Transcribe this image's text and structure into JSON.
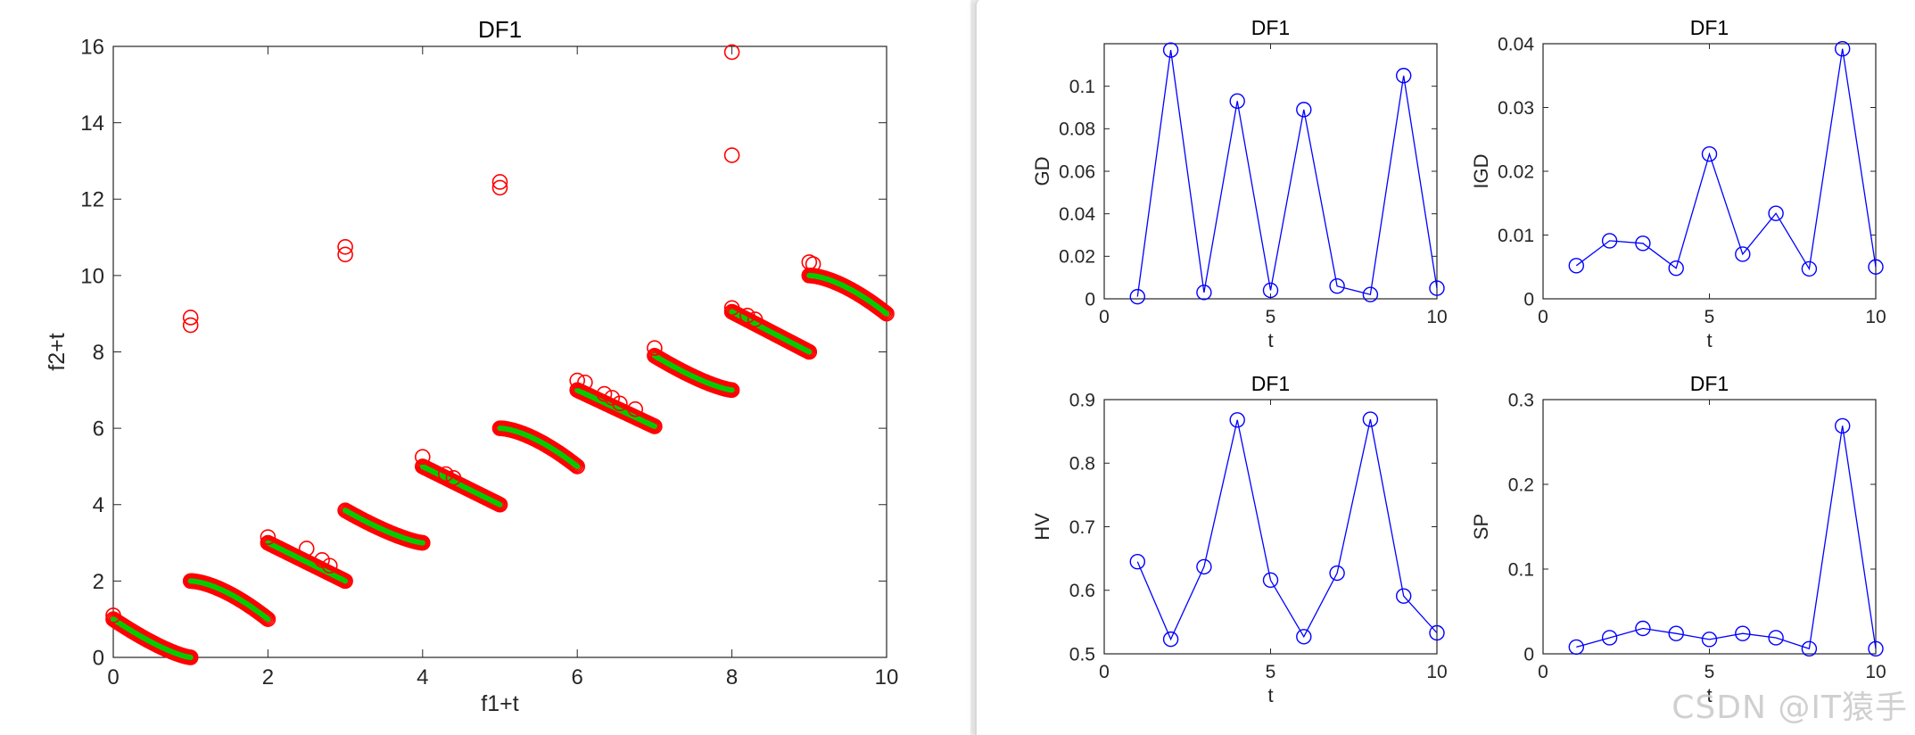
{
  "watermark": "CSDN @IT猿手",
  "colors": {
    "front": "#ff0000",
    "true_pf": "#00cc00",
    "metric": "#0000ff",
    "axis": "#262626"
  },
  "chart_data": [
    {
      "id": "main",
      "type": "scatter",
      "title": "DF1",
      "xlabel": "f1+t",
      "ylabel": "f2+t",
      "xlim": [
        0,
        10
      ],
      "ylim": [
        0,
        16
      ],
      "xticks": [
        0,
        2,
        4,
        6,
        8,
        10
      ],
      "yticks": [
        0,
        2,
        4,
        6,
        8,
        10,
        12,
        14,
        16
      ],
      "series": [],
      "segments": [
        {
          "t": 0,
          "x": [
            0,
            1
          ],
          "y_start": 1,
          "y_end": 0,
          "shape": "convex"
        },
        {
          "t": 1,
          "x": [
            1,
            2
          ],
          "y_start": 2,
          "y_end": 1,
          "shape": "concave"
        },
        {
          "t": 2,
          "x": [
            2,
            3
          ],
          "y_start": 3,
          "y_end": 2,
          "shape": "linear"
        },
        {
          "t": 3,
          "x": [
            3,
            4
          ],
          "y_start": 3.85,
          "y_end": 3,
          "shape": "convex"
        },
        {
          "t": 4,
          "x": [
            4,
            5
          ],
          "y_start": 5,
          "y_end": 4,
          "shape": "linear"
        },
        {
          "t": 5,
          "x": [
            5,
            6
          ],
          "y_start": 6,
          "y_end": 5,
          "shape": "concave"
        },
        {
          "t": 6,
          "x": [
            6,
            7
          ],
          "y_start": 7,
          "y_end": 6.05,
          "shape": "linear"
        },
        {
          "t": 7,
          "x": [
            7,
            8
          ],
          "y_start": 7.9,
          "y_end": 7,
          "shape": "convex"
        },
        {
          "t": 8,
          "x": [
            8,
            9
          ],
          "y_start": 9.05,
          "y_end": 8,
          "shape": "linear"
        },
        {
          "t": 9,
          "x": [
            9,
            10
          ],
          "y_start": 10,
          "y_end": 9,
          "shape": "concave"
        }
      ],
      "outliers": [
        [
          0,
          1.1
        ],
        [
          1,
          8.9
        ],
        [
          1,
          8.7
        ],
        [
          2,
          3.15
        ],
        [
          2.5,
          2.85
        ],
        [
          2.7,
          2.55
        ],
        [
          2.8,
          2.4
        ],
        [
          3,
          10.75
        ],
        [
          3,
          10.55
        ],
        [
          4,
          5.25
        ],
        [
          4.3,
          4.8
        ],
        [
          4.4,
          4.7
        ],
        [
          5,
          12.45
        ],
        [
          5,
          12.3
        ],
        [
          6,
          7.25
        ],
        [
          6.1,
          7.2
        ],
        [
          6.35,
          6.9
        ],
        [
          6.45,
          6.8
        ],
        [
          6.55,
          6.65
        ],
        [
          6.75,
          6.5
        ],
        [
          7,
          8.1
        ],
        [
          8,
          15.85
        ],
        [
          8,
          13.15
        ],
        [
          8,
          9.15
        ],
        [
          8.2,
          8.95
        ],
        [
          8.3,
          8.85
        ],
        [
          9,
          10.35
        ],
        [
          9.05,
          10.3
        ]
      ]
    },
    {
      "id": "gd",
      "type": "line",
      "title": "DF1",
      "xlabel": "t",
      "ylabel": "GD",
      "xlim": [
        0,
        10
      ],
      "ylim": [
        0,
        0.12
      ],
      "xticks": [
        0,
        5,
        10
      ],
      "yticks": [
        0,
        0.02,
        0.04,
        0.06,
        0.08,
        0.1
      ],
      "ytick_labels": [
        "0",
        "0.02",
        "0.04",
        "0.06",
        "0.08",
        "0.1"
      ],
      "x": [
        1,
        2,
        3,
        4,
        5,
        6,
        7,
        8,
        9,
        10
      ],
      "values": [
        0.001,
        0.117,
        0.003,
        0.093,
        0.004,
        0.089,
        0.006,
        0.002,
        0.105,
        0.005
      ]
    },
    {
      "id": "igd",
      "type": "line",
      "title": "DF1",
      "xlabel": "t",
      "ylabel": "IGD",
      "xlim": [
        0,
        10
      ],
      "ylim": [
        0,
        0.04
      ],
      "xticks": [
        0,
        5,
        10
      ],
      "yticks": [
        0,
        0.01,
        0.02,
        0.03,
        0.04
      ],
      "ytick_labels": [
        "0",
        "0.01",
        "0.02",
        "0.03",
        "0.04"
      ],
      "x": [
        1,
        2,
        3,
        4,
        5,
        6,
        7,
        8,
        9,
        10
      ],
      "values": [
        0.0052,
        0.0091,
        0.0087,
        0.0048,
        0.0227,
        0.007,
        0.0134,
        0.0047,
        0.0392,
        0.005
      ]
    },
    {
      "id": "hv",
      "type": "line",
      "title": "DF1",
      "xlabel": "t",
      "ylabel": "HV",
      "xlim": [
        0,
        10
      ],
      "ylim": [
        0.5,
        0.9
      ],
      "xticks": [
        0,
        5,
        10
      ],
      "yticks": [
        0.5,
        0.6,
        0.7,
        0.8,
        0.9
      ],
      "ytick_labels": [
        "0.5",
        "0.6",
        "0.7",
        "0.8",
        "0.9"
      ],
      "x": [
        1,
        2,
        3,
        4,
        5,
        6,
        7,
        8,
        9,
        10
      ],
      "values": [
        0.645,
        0.523,
        0.637,
        0.868,
        0.616,
        0.527,
        0.627,
        0.869,
        0.591,
        0.533
      ]
    },
    {
      "id": "sp",
      "type": "line",
      "title": "DF1",
      "xlabel": "t",
      "ylabel": "SP",
      "xlim": [
        0,
        10
      ],
      "ylim": [
        0,
        0.3
      ],
      "xticks": [
        0,
        5,
        10
      ],
      "yticks": [
        0,
        0.1,
        0.2,
        0.3
      ],
      "ytick_labels": [
        "0",
        "0.1",
        "0.2",
        "0.3"
      ],
      "x": [
        1,
        2,
        3,
        4,
        5,
        6,
        7,
        8,
        9,
        10
      ],
      "values": [
        0.008,
        0.019,
        0.03,
        0.024,
        0.017,
        0.024,
        0.019,
        0.006,
        0.269,
        0.006
      ]
    }
  ]
}
